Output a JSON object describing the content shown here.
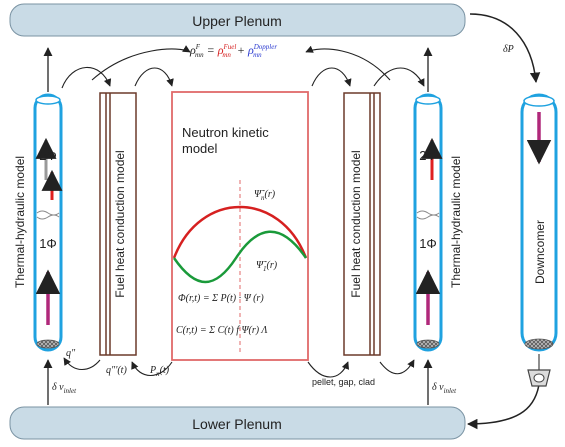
{
  "plenum": {
    "upper": "Upper Plenum",
    "lower": "Lower Plenum"
  },
  "pressure_drop": "δP",
  "inlet_velocity": "δ v",
  "inlet_velocity_sub": "inlet",
  "reactivity": {
    "lhs": "ρ",
    "lhs_sup": "F",
    "lhs_sub": "mn",
    "eq": "=",
    "fuel": "ρ",
    "fuel_sup": "Fuel",
    "fuel_sub": "mn",
    "plus": "+",
    "doppler": "ρ",
    "doppler_sup": "Doppler",
    "doppler_sub": "mn"
  },
  "models": {
    "thermal_hydraulic": "Thermal-hydraulic model",
    "fuel_heat": "Fuel heat conduction model",
    "neutron_kinetic_1": "Neutron kinetic",
    "neutron_kinetic_2": "model",
    "downcomer": "Downcomer"
  },
  "phases": {
    "two": "2Φ",
    "one": "1Φ"
  },
  "flux_labels": {
    "q_wall": "q\"",
    "q_fuel": "q\"'(t)",
    "power": "P",
    "power_sub": "n",
    "power_arg": "(t)"
  },
  "shape_labels": {
    "adjoint": "Ψ̃",
    "adjoint_sub": "n",
    "adjoint_arg": "(r)",
    "forward": "Ψ̃",
    "forward_sub": "1",
    "forward_arg": "(r)"
  },
  "equations": {
    "flux": "Φ(r,t) = Σ P(t) · Ψ (r)",
    "precursor": "C(r,t) = Σ C(t) f Ψ(r) Λ"
  },
  "fuel_layers": "pellet, gap, clad",
  "colors": {
    "pipe_blue": "#1fa2e0",
    "plenum_fill": "#c9dbe6",
    "fuel_brown": "#6b3a2a",
    "kinetic_border": "#e06a6a",
    "curve_red": "#d62020",
    "curve_green": "#1a9a3a",
    "magenta_arrow": "#b0287a",
    "fuel_red": "#ff0000",
    "doppler_blue": "#2a3ad0"
  }
}
